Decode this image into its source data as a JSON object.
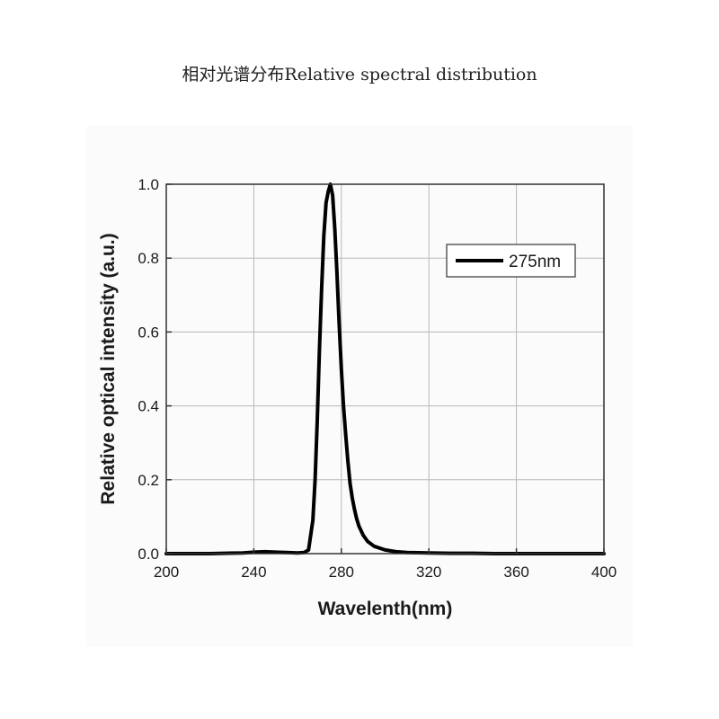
{
  "page": {
    "heading": "相对光谱分布Relative spectral distribution"
  },
  "chart_data": {
    "type": "line",
    "title": "",
    "xlabel": "Wavelenth(nm)",
    "ylabel": "Relative optical intensity (a.u.)",
    "xlim": [
      200,
      400
    ],
    "ylim": [
      0,
      1.0
    ],
    "xticks": [
      200,
      240,
      280,
      320,
      360,
      400
    ],
    "xtick_labels": [
      "200",
      "240",
      "280",
      "320",
      "360",
      "400"
    ],
    "yticks": [
      0.0,
      0.2,
      0.4,
      0.6,
      0.8,
      1.0
    ],
    "ytick_labels": [
      "0.0",
      "0.2",
      "0.4",
      "0.6",
      "0.8",
      "1.0"
    ],
    "grid": true,
    "legend_position": "top-right",
    "line_color": "#000000",
    "series": [
      {
        "name": "275nm",
        "x": [
          200,
          220,
          235,
          240,
          245,
          250,
          255,
          260,
          263,
          265,
          267,
          268,
          269,
          270,
          271,
          272,
          273,
          274,
          275,
          276,
          277,
          278,
          279,
          280,
          281,
          282,
          283,
          284,
          285,
          286,
          287,
          288,
          290,
          292,
          295,
          300,
          305,
          310,
          320,
          330,
          340,
          350,
          360,
          380,
          400
        ],
        "y": [
          0.0,
          0.0,
          0.002,
          0.004,
          0.005,
          0.004,
          0.003,
          0.002,
          0.003,
          0.01,
          0.09,
          0.2,
          0.36,
          0.55,
          0.72,
          0.86,
          0.95,
          0.98,
          1.0,
          0.97,
          0.88,
          0.76,
          0.62,
          0.5,
          0.4,
          0.32,
          0.25,
          0.19,
          0.15,
          0.12,
          0.095,
          0.075,
          0.05,
          0.033,
          0.02,
          0.01,
          0.005,
          0.003,
          0.002,
          0.001,
          0.001,
          0.0,
          0.0,
          0.0,
          0.0
        ]
      }
    ]
  }
}
